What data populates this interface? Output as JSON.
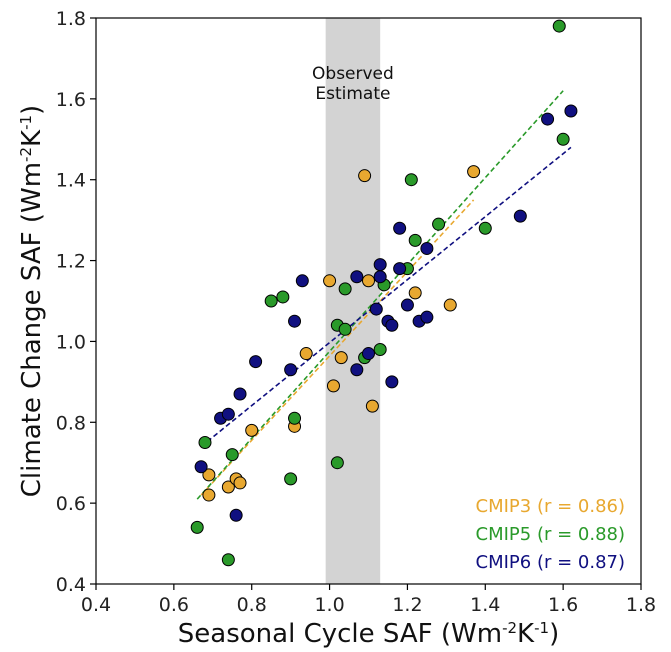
{
  "chart_data": {
    "type": "scatter",
    "xlabel": "Seasonal Cycle SAF (Wm",
    "xlabel_sup": "-2",
    "xlabel_mid": "K",
    "xlabel_sup2": "-1",
    "xlabel_end": ")",
    "ylabel": "Climate Change SAF (Wm",
    "ylabel_sup": "-2",
    "ylabel_mid": "K",
    "ylabel_sup2": "-1",
    "ylabel_end": ")",
    "xlim": [
      0.4,
      1.8
    ],
    "ylim": [
      0.4,
      1.8
    ],
    "x_ticks": [
      "0.4",
      "0.6",
      "0.8",
      "1.0",
      "1.2",
      "1.4",
      "1.6",
      "1.8"
    ],
    "y_ticks": [
      "0.4",
      "0.6",
      "0.8",
      "1.0",
      "1.2",
      "1.4",
      "1.6",
      "1.8"
    ],
    "observed_band": {
      "x_range": [
        0.99,
        1.13
      ],
      "label_line1": "Observed",
      "label_line2": "Estimate",
      "color": "#d3d3d3"
    },
    "legend_position": "bottom-right",
    "series": [
      {
        "name": "CMIP3 (r = 0.86)",
        "color": "#E8A830",
        "fit_line": {
          "x": [
            0.67,
            1.37
          ],
          "y": [
            0.62,
            1.35
          ]
        },
        "points": [
          [
            0.69,
            0.62
          ],
          [
            0.69,
            0.67
          ],
          [
            0.74,
            0.64
          ],
          [
            0.76,
            0.66
          ],
          [
            0.77,
            0.65
          ],
          [
            0.8,
            0.78
          ],
          [
            0.91,
            0.79
          ],
          [
            0.94,
            0.97
          ],
          [
            1.0,
            1.15
          ],
          [
            1.01,
            0.89
          ],
          [
            1.03,
            0.96
          ],
          [
            1.09,
            1.41
          ],
          [
            1.1,
            1.15
          ],
          [
            1.11,
            0.84
          ],
          [
            1.22,
            1.12
          ],
          [
            1.31,
            1.09
          ],
          [
            1.37,
            1.42
          ]
        ]
      },
      {
        "name": "CMIP5 (r = 0.88)",
        "color": "#2A9A2A",
        "fit_line": {
          "x": [
            0.66,
            1.6
          ],
          "y": [
            0.61,
            1.62
          ]
        },
        "points": [
          [
            0.66,
            0.54
          ],
          [
            0.68,
            0.75
          ],
          [
            0.74,
            0.46
          ],
          [
            0.75,
            0.72
          ],
          [
            0.85,
            1.1
          ],
          [
            0.88,
            1.11
          ],
          [
            0.9,
            0.66
          ],
          [
            0.91,
            0.81
          ],
          [
            1.02,
            1.04
          ],
          [
            1.02,
            0.7
          ],
          [
            1.04,
            1.13
          ],
          [
            1.04,
            1.03
          ],
          [
            1.09,
            0.96
          ],
          [
            1.13,
            0.98
          ],
          [
            1.14,
            1.14
          ],
          [
            1.2,
            1.18
          ],
          [
            1.21,
            1.4
          ],
          [
            1.22,
            1.25
          ],
          [
            1.28,
            1.29
          ],
          [
            1.4,
            1.28
          ],
          [
            1.59,
            1.78
          ],
          [
            1.6,
            1.5
          ]
        ]
      },
      {
        "name": "CMIP6 (r = 0.87)",
        "color": "#101080",
        "fit_line": {
          "x": [
            0.67,
            1.62
          ],
          "y": [
            0.74,
            1.48
          ]
        },
        "points": [
          [
            0.67,
            0.69
          ],
          [
            0.72,
            0.81
          ],
          [
            0.74,
            0.82
          ],
          [
            0.76,
            0.57
          ],
          [
            0.77,
            0.87
          ],
          [
            0.81,
            0.95
          ],
          [
            0.9,
            0.93
          ],
          [
            0.91,
            1.05
          ],
          [
            0.93,
            1.15
          ],
          [
            1.07,
            0.93
          ],
          [
            1.07,
            1.16
          ],
          [
            1.1,
            0.97
          ],
          [
            1.12,
            1.08
          ],
          [
            1.13,
            1.16
          ],
          [
            1.13,
            1.19
          ],
          [
            1.15,
            1.05
          ],
          [
            1.16,
            1.04
          ],
          [
            1.16,
            0.9
          ],
          [
            1.18,
            1.28
          ],
          [
            1.18,
            1.18
          ],
          [
            1.2,
            1.09
          ],
          [
            1.23,
            1.05
          ],
          [
            1.25,
            1.06
          ],
          [
            1.25,
            1.23
          ],
          [
            1.49,
            1.31
          ],
          [
            1.56,
            1.55
          ],
          [
            1.62,
            1.57
          ]
        ]
      }
    ]
  }
}
